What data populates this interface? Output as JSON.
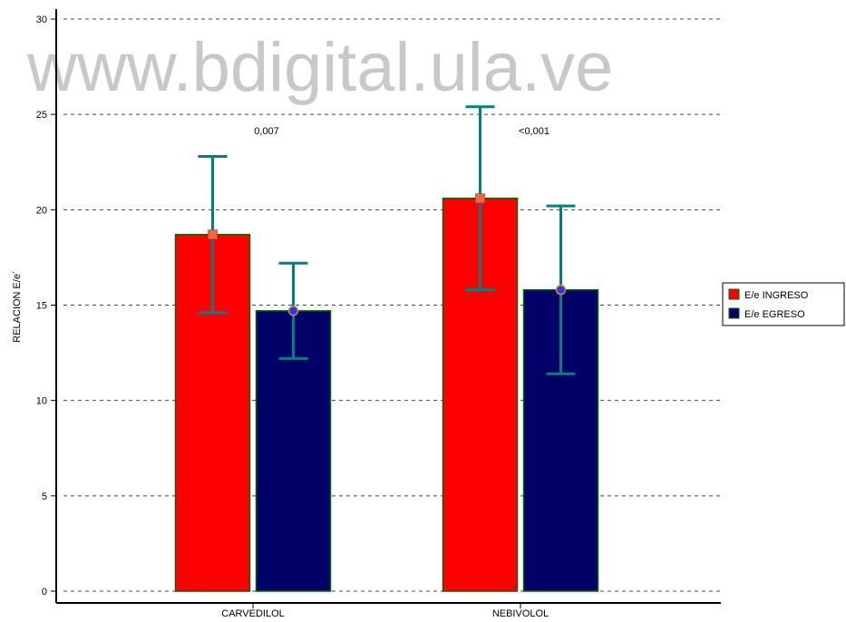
{
  "watermark": "www.bdigital.ula.ve",
  "chart_data": {
    "type": "bar",
    "categories": [
      "CARVEDILOL",
      "NEBIVOLOL"
    ],
    "series": [
      {
        "name": "E/e INGRESO",
        "values": [
          18.7,
          20.6
        ],
        "error": [
          4.1,
          4.8
        ],
        "color": "#ff0000"
      },
      {
        "name": "E/e EGRESO",
        "values": [
          14.7,
          15.8
        ],
        "error": [
          2.5,
          4.4
        ],
        "color": "#000066"
      }
    ],
    "annotations": [
      "0,007",
      "<0,001"
    ],
    "ylabel": "RELACION E/e´",
    "xlabel": "",
    "ylim": [
      0,
      30
    ],
    "yticks": [
      "0",
      "5",
      "10",
      "15",
      "20",
      "25",
      "30"
    ],
    "grid": true,
    "legend_position": "right",
    "colors": {
      "error_bar": "#008080",
      "marker_ingreso": "#ff6633",
      "marker_egreso": "#3333ff",
      "bar_border": "#006600"
    }
  }
}
